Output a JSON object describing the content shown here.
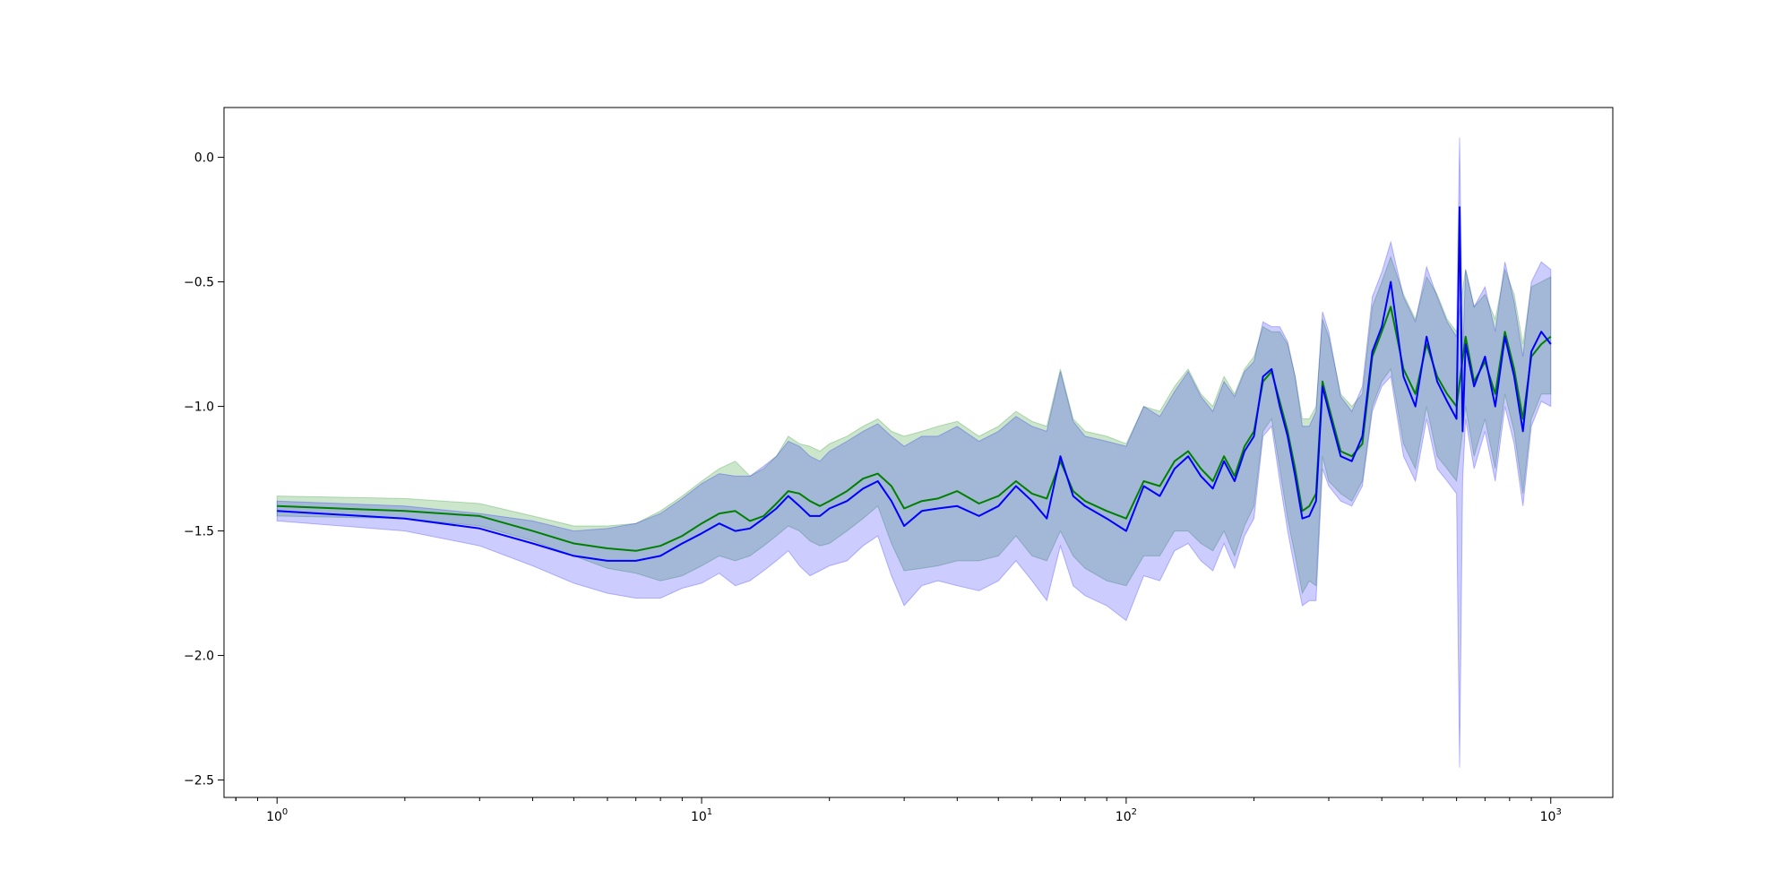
{
  "chart_data": {
    "type": "line",
    "xscale": "log",
    "xlim": [
      0.75,
      1400
    ],
    "ylim": [
      -2.57,
      0.2
    ],
    "grid": false,
    "legend": false,
    "x_ticks": [
      {
        "base": "10",
        "exp": "0",
        "value": 1
      },
      {
        "base": "10",
        "exp": "1",
        "value": 10
      },
      {
        "base": "10",
        "exp": "2",
        "value": 100
      },
      {
        "base": "10",
        "exp": "3",
        "value": 1000
      }
    ],
    "y_ticks": [
      {
        "label": "0.0",
        "value": 0.0
      },
      {
        "label": "−0.5",
        "value": -0.5
      },
      {
        "label": "−1.0",
        "value": -1.0
      },
      {
        "label": "−1.5",
        "value": -1.5
      },
      {
        "label": "−2.0",
        "value": -2.0
      },
      {
        "label": "−2.5",
        "value": -2.5
      }
    ],
    "series": [
      {
        "color": "#008000",
        "band_color": "#008000",
        "x": [
          1,
          2,
          3,
          4,
          5,
          6,
          7,
          8,
          9,
          10,
          11,
          12,
          13,
          14,
          15,
          16,
          17,
          18,
          19,
          20,
          22,
          24,
          26,
          28,
          30,
          33,
          36,
          40,
          45,
          50,
          55,
          60,
          65,
          70,
          75,
          80,
          90,
          100,
          110,
          120,
          130,
          140,
          150,
          160,
          170,
          180,
          190,
          200,
          210,
          220,
          230,
          240,
          250,
          260,
          270,
          280,
          290,
          300,
          320,
          340,
          360,
          380,
          400,
          420,
          450,
          480,
          510,
          540,
          570,
          600,
          630,
          660,
          700,
          740,
          780,
          820,
          860,
          900,
          950,
          1000
        ],
        "y": [
          -1.4,
          -1.42,
          -1.44,
          -1.5,
          -1.55,
          -1.57,
          -1.58,
          -1.56,
          -1.52,
          -1.47,
          -1.43,
          -1.42,
          -1.46,
          -1.44,
          -1.39,
          -1.34,
          -1.35,
          -1.38,
          -1.4,
          -1.38,
          -1.34,
          -1.29,
          -1.27,
          -1.32,
          -1.41,
          -1.38,
          -1.37,
          -1.34,
          -1.39,
          -1.36,
          -1.3,
          -1.35,
          -1.37,
          -1.22,
          -1.34,
          -1.38,
          -1.42,
          -1.45,
          -1.3,
          -1.32,
          -1.22,
          -1.18,
          -1.25,
          -1.3,
          -1.2,
          -1.28,
          -1.16,
          -1.1,
          -0.9,
          -0.86,
          -0.98,
          -1.1,
          -1.25,
          -1.42,
          -1.4,
          -1.35,
          -0.9,
          -1.0,
          -1.18,
          -1.2,
          -1.15,
          -0.8,
          -0.7,
          -0.6,
          -0.85,
          -0.95,
          -0.75,
          -0.88,
          -0.95,
          -1.0,
          -0.72,
          -0.9,
          -0.82,
          -0.95,
          -0.7,
          -0.85,
          -1.05,
          -0.8,
          -0.75,
          -0.72
        ],
        "lower": [
          -1.44,
          -1.45,
          -1.48,
          -1.54,
          -1.6,
          -1.65,
          -1.67,
          -1.7,
          -1.68,
          -1.64,
          -1.6,
          -1.62,
          -1.6,
          -1.56,
          -1.52,
          -1.48,
          -1.5,
          -1.54,
          -1.56,
          -1.55,
          -1.5,
          -1.45,
          -1.4,
          -1.55,
          -1.66,
          -1.65,
          -1.64,
          -1.62,
          -1.62,
          -1.6,
          -1.52,
          -1.6,
          -1.62,
          -1.5,
          -1.6,
          -1.65,
          -1.7,
          -1.72,
          -1.6,
          -1.6,
          -1.5,
          -1.5,
          -1.55,
          -1.58,
          -1.5,
          -1.6,
          -1.48,
          -1.4,
          -1.1,
          -1.05,
          -1.25,
          -1.45,
          -1.6,
          -1.75,
          -1.7,
          -1.72,
          -1.2,
          -1.3,
          -1.35,
          -1.38,
          -1.3,
          -1.0,
          -0.9,
          -0.85,
          -1.15,
          -1.25,
          -1.0,
          -1.2,
          -1.25,
          -1.3,
          -1.0,
          -1.2,
          -1.05,
          -1.25,
          -0.95,
          -1.1,
          -1.35,
          -1.05,
          -0.95,
          -0.95
        ],
        "upper": [
          -1.36,
          -1.37,
          -1.39,
          -1.44,
          -1.48,
          -1.48,
          -1.47,
          -1.42,
          -1.36,
          -1.3,
          -1.25,
          -1.22,
          -1.28,
          -1.25,
          -1.2,
          -1.12,
          -1.15,
          -1.16,
          -1.18,
          -1.15,
          -1.12,
          -1.08,
          -1.05,
          -1.1,
          -1.12,
          -1.1,
          -1.08,
          -1.06,
          -1.12,
          -1.08,
          -1.02,
          -1.06,
          -1.08,
          -0.85,
          -1.05,
          -1.1,
          -1.12,
          -1.15,
          -1.0,
          -1.02,
          -0.92,
          -0.85,
          -0.95,
          -1.0,
          -0.88,
          -0.95,
          -0.85,
          -0.8,
          -0.68,
          -0.7,
          -0.7,
          -0.75,
          -0.88,
          -1.05,
          -1.05,
          -1.0,
          -0.65,
          -0.72,
          -0.95,
          -1.0,
          -0.95,
          -0.6,
          -0.5,
          -0.4,
          -0.55,
          -0.65,
          -0.48,
          -0.55,
          -0.65,
          -0.7,
          -0.45,
          -0.6,
          -0.55,
          -0.65,
          -0.45,
          -0.55,
          -0.75,
          -0.52,
          -0.5,
          -0.48
        ]
      },
      {
        "color": "#0000ff",
        "band_color": "#0000ff",
        "x": [
          1,
          2,
          3,
          4,
          5,
          6,
          7,
          8,
          9,
          10,
          11,
          12,
          13,
          14,
          15,
          16,
          17,
          18,
          19,
          20,
          22,
          24,
          26,
          28,
          30,
          33,
          36,
          40,
          45,
          50,
          55,
          60,
          65,
          70,
          75,
          80,
          90,
          100,
          110,
          120,
          130,
          140,
          150,
          160,
          170,
          180,
          190,
          200,
          210,
          220,
          230,
          240,
          250,
          260,
          270,
          280,
          290,
          300,
          320,
          340,
          360,
          380,
          400,
          420,
          450,
          480,
          510,
          540,
          570,
          600,
          610,
          620,
          630,
          660,
          700,
          740,
          780,
          820,
          860,
          900,
          950,
          1000
        ],
        "y": [
          -1.42,
          -1.45,
          -1.49,
          -1.55,
          -1.6,
          -1.62,
          -1.62,
          -1.6,
          -1.55,
          -1.51,
          -1.47,
          -1.5,
          -1.49,
          -1.45,
          -1.41,
          -1.36,
          -1.4,
          -1.44,
          -1.44,
          -1.41,
          -1.38,
          -1.33,
          -1.3,
          -1.38,
          -1.48,
          -1.42,
          -1.41,
          -1.4,
          -1.44,
          -1.4,
          -1.32,
          -1.38,
          -1.45,
          -1.2,
          -1.36,
          -1.4,
          -1.45,
          -1.5,
          -1.32,
          -1.36,
          -1.25,
          -1.2,
          -1.28,
          -1.33,
          -1.22,
          -1.3,
          -1.18,
          -1.12,
          -0.88,
          -0.85,
          -1.0,
          -1.12,
          -1.28,
          -1.45,
          -1.44,
          -1.38,
          -0.92,
          -1.02,
          -1.2,
          -1.22,
          -1.12,
          -0.78,
          -0.68,
          -0.5,
          -0.88,
          -1.0,
          -0.72,
          -0.9,
          -0.98,
          -1.05,
          -0.2,
          -1.1,
          -0.75,
          -0.92,
          -0.8,
          -1.0,
          -0.72,
          -0.88,
          -1.1,
          -0.78,
          -0.7,
          -0.75
        ],
        "lower": [
          -1.46,
          -1.5,
          -1.56,
          -1.64,
          -1.71,
          -1.75,
          -1.77,
          -1.77,
          -1.73,
          -1.71,
          -1.67,
          -1.72,
          -1.7,
          -1.66,
          -1.62,
          -1.58,
          -1.64,
          -1.68,
          -1.66,
          -1.64,
          -1.62,
          -1.56,
          -1.52,
          -1.68,
          -1.8,
          -1.72,
          -1.7,
          -1.72,
          -1.74,
          -1.7,
          -1.62,
          -1.7,
          -1.78,
          -1.56,
          -1.72,
          -1.76,
          -1.8,
          -1.86,
          -1.68,
          -1.7,
          -1.58,
          -1.55,
          -1.62,
          -1.66,
          -1.55,
          -1.65,
          -1.52,
          -1.45,
          -1.12,
          -1.08,
          -1.3,
          -1.5,
          -1.66,
          -1.8,
          -1.78,
          -1.78,
          -1.25,
          -1.32,
          -1.38,
          -1.4,
          -1.32,
          -1.02,
          -0.92,
          -0.88,
          -1.2,
          -1.3,
          -1.05,
          -1.25,
          -1.3,
          -1.35,
          -2.45,
          -1.3,
          -1.05,
          -1.25,
          -1.1,
          -1.3,
          -1.0,
          -1.15,
          -1.4,
          -1.08,
          -0.98,
          -1.0
        ],
        "upper": [
          -1.38,
          -1.4,
          -1.43,
          -1.46,
          -1.5,
          -1.49,
          -1.47,
          -1.43,
          -1.37,
          -1.31,
          -1.27,
          -1.28,
          -1.28,
          -1.24,
          -1.2,
          -1.14,
          -1.16,
          -1.2,
          -1.22,
          -1.18,
          -1.14,
          -1.1,
          -1.07,
          -1.12,
          -1.16,
          -1.12,
          -1.12,
          -1.08,
          -1.14,
          -1.1,
          -1.04,
          -1.08,
          -1.1,
          -0.86,
          -1.06,
          -1.12,
          -1.14,
          -1.16,
          -1.0,
          -1.04,
          -0.94,
          -0.86,
          -0.96,
          -1.02,
          -0.9,
          -0.96,
          -0.86,
          -0.82,
          -0.66,
          -0.68,
          -0.68,
          -0.74,
          -0.88,
          -1.08,
          -1.08,
          -1.02,
          -0.62,
          -0.7,
          -0.96,
          -1.02,
          -0.92,
          -0.56,
          -0.46,
          -0.34,
          -0.56,
          -0.66,
          -0.44,
          -0.56,
          -0.66,
          -0.72,
          0.08,
          -0.8,
          -0.45,
          -0.6,
          -0.52,
          -0.7,
          -0.42,
          -0.58,
          -0.8,
          -0.5,
          -0.42,
          -0.45
        ]
      }
    ]
  }
}
